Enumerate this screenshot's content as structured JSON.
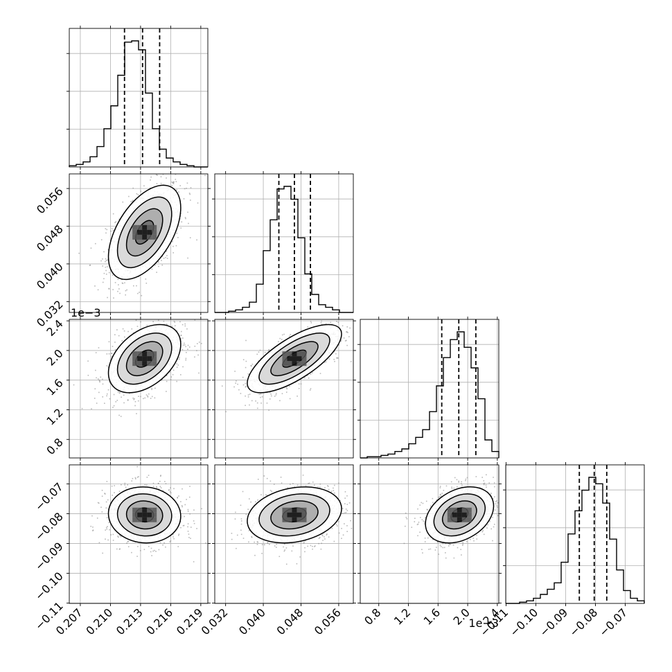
{
  "chart_data": {
    "type": "corner",
    "parameters": [
      {
        "ticks": [
          "0.207",
          "0.210",
          "0.213",
          "0.216",
          "0.219"
        ],
        "tick_values": [
          0.207,
          0.21,
          0.213,
          0.216,
          0.219
        ],
        "range": [
          0.2059,
          0.2197
        ],
        "offset_label": ""
      },
      {
        "ticks": [
          "0.032",
          "0.040",
          "0.048",
          "0.056"
        ],
        "tick_values": [
          0.032,
          0.04,
          0.048,
          0.056
        ],
        "range": [
          0.0297,
          0.0591
        ],
        "offset_label": ""
      },
      {
        "ticks": [
          "0.8",
          "1.2",
          "1.6",
          "2.0",
          "2.4"
        ],
        "tick_values": [
          0.8,
          1.2,
          1.6,
          2.0,
          2.4
        ],
        "range": [
          0.55,
          2.42
        ],
        "offset_label": "1e−3"
      },
      {
        "ticks": [
          "−0.11",
          "−0.10",
          "−0.09",
          "−0.08",
          "−0.07"
        ],
        "tick_values": [
          -0.11,
          -0.1,
          -0.09,
          -0.08,
          -0.07
        ],
        "range": [
          -0.1101,
          -0.0636
        ],
        "offset_label": ""
      }
    ],
    "histograms": [
      {
        "param": 0,
        "bins": 20,
        "counts": [
          1,
          2,
          4,
          8,
          16,
          30,
          48,
          72,
          98,
          99,
          92,
          58,
          30,
          14,
          7,
          4,
          2,
          1,
          0,
          0
        ],
        "quantiles": [
          0.2114,
          0.2132,
          0.2149
        ]
      },
      {
        "param": 1,
        "bins": 20,
        "counts": [
          0,
          0,
          1,
          2,
          4,
          8,
          22,
          48,
          72,
          96,
          98,
          88,
          58,
          30,
          14,
          6,
          4,
          2,
          0,
          0
        ],
        "quantiles": [
          0.0433,
          0.0466,
          0.05
        ]
      },
      {
        "param": 2,
        "bins": 20,
        "counts": [
          0,
          1,
          1,
          2,
          3,
          5,
          7,
          11,
          16,
          22,
          36,
          56,
          78,
          92,
          98,
          86,
          70,
          46,
          14,
          5
        ],
        "quantiles": [
          1.65,
          1.88,
          2.11
        ]
      },
      {
        "param": 3,
        "bins": 20,
        "counts": [
          0,
          0,
          1,
          2,
          4,
          7,
          11,
          16,
          32,
          54,
          72,
          88,
          98,
          93,
          78,
          50,
          26,
          10,
          4,
          2
        ],
        "quantiles": [
          -0.0854,
          -0.0804,
          -0.0762
        ]
      }
    ],
    "pairs": [
      {
        "x": 0,
        "y": 1,
        "center": [
          0.2134,
          0.0467
        ],
        "sigma": [
          0.0018,
          0.005
        ],
        "corr": 0.52
      },
      {
        "x": 0,
        "y": 2,
        "center": [
          0.2134,
          1.89
        ],
        "sigma": [
          0.0018,
          0.23
        ],
        "corr": 0.42
      },
      {
        "x": 1,
        "y": 2,
        "center": [
          0.0466,
          1.89
        ],
        "sigma": [
          0.005,
          0.23
        ],
        "corr": 0.72
      },
      {
        "x": 0,
        "y": 3,
        "center": [
          0.2134,
          -0.0804
        ],
        "sigma": [
          0.0018,
          0.0047
        ],
        "corr": -0.05
      },
      {
        "x": 1,
        "y": 3,
        "center": [
          0.0466,
          -0.0804
        ],
        "sigma": [
          0.005,
          0.0047
        ],
        "corr": 0.22
      },
      {
        "x": 2,
        "y": 3,
        "center": [
          1.89,
          -0.0804
        ],
        "sigma": [
          0.23,
          0.0047
        ],
        "corr": 0.32
      }
    ],
    "contour_levels_sigma": [
      0.5,
      1.0,
      1.5,
      2.0
    ],
    "grid": true,
    "title": "",
    "xlabel": "",
    "ylabel": ""
  },
  "colors": {
    "line": "#000000",
    "grid": "#b0b0b0",
    "points": "#808080",
    "background": "#ffffff"
  }
}
